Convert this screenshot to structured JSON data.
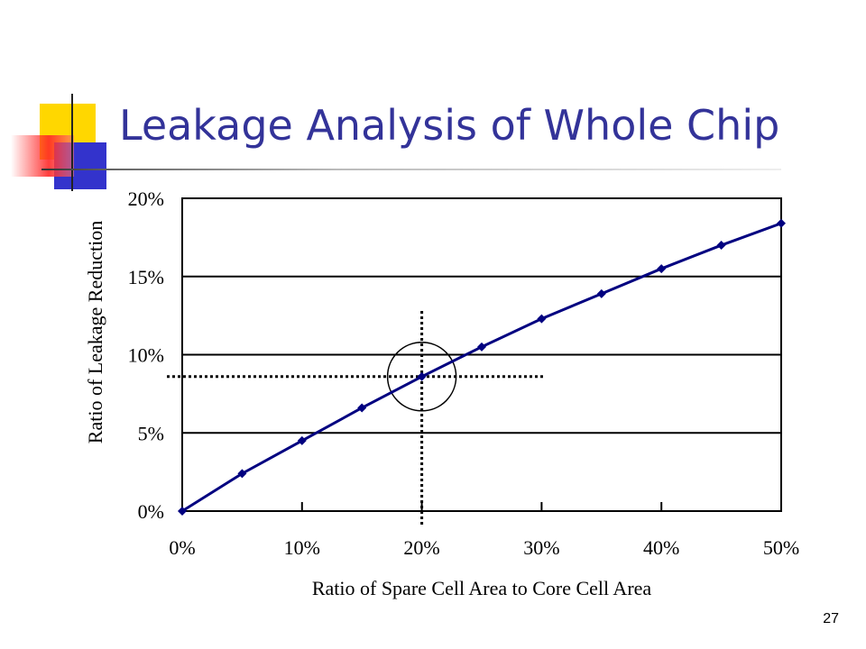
{
  "slide": {
    "title": "Leakage Analysis of Whole Chip",
    "page_number": "27"
  },
  "chart_data": {
    "type": "line",
    "title": "",
    "xlabel": "Ratio of Spare Cell Area to Core Cell Area",
    "ylabel": "Ratio of Leakage Reduction",
    "x_ticks": [
      "0%",
      "10%",
      "20%",
      "30%",
      "40%",
      "50%"
    ],
    "y_ticks": [
      "0%",
      "5%",
      "10%",
      "15%",
      "20%"
    ],
    "xlim": [
      0,
      50
    ],
    "ylim": [
      0,
      20
    ],
    "grid": "horizontal",
    "series": [
      {
        "color": "#000080",
        "x": [
          0,
          5,
          10,
          15,
          20,
          25,
          30,
          35,
          40,
          45,
          50
        ],
        "y": [
          0,
          2.4,
          4.5,
          6.6,
          8.6,
          10.5,
          12.3,
          13.9,
          15.5,
          17.0,
          18.4
        ]
      }
    ],
    "annotation": {
      "x": 20,
      "y": 8.6,
      "shape": "circle",
      "crosshair": "dotted"
    }
  }
}
